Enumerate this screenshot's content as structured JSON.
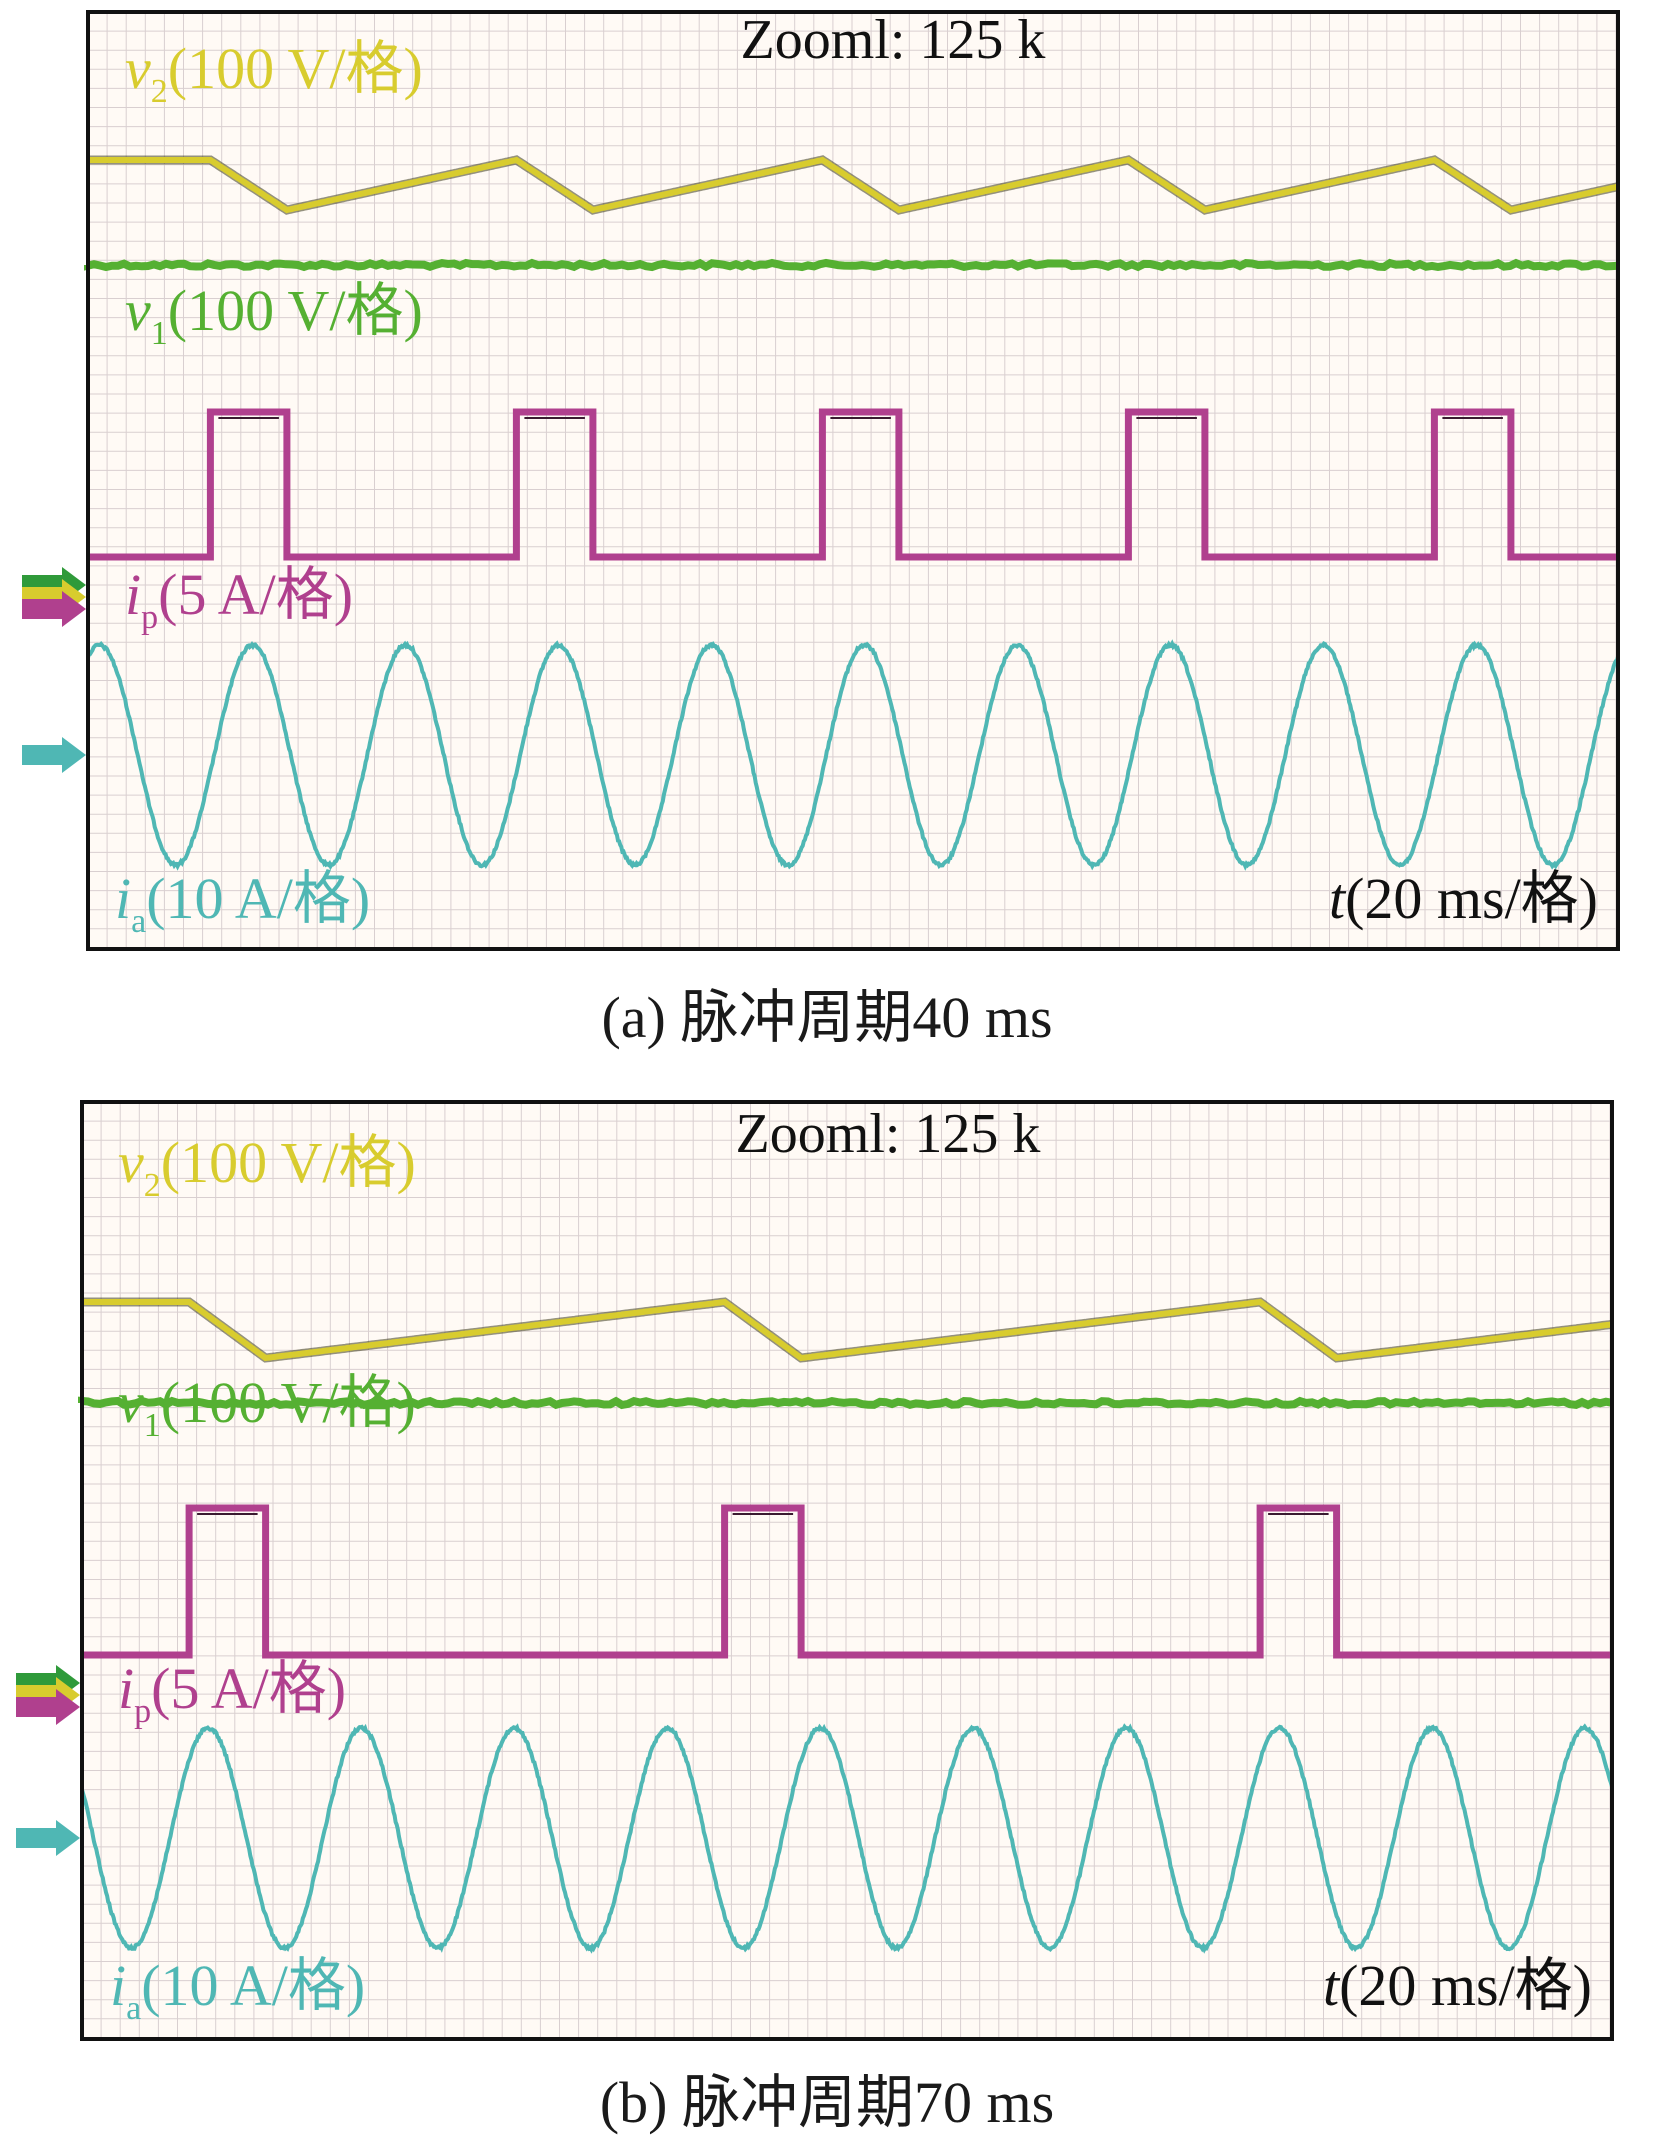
{
  "colors": {
    "grid_bg": "#fffaf5",
    "grid_line": "#d9cfd0",
    "frame": "#111111",
    "v2": "#d8cc2e",
    "v1": "#55b032",
    "ip": "#b0408e",
    "ia": "#4fb7b4",
    "marker_green": "#2f9a3a",
    "marker_yellow": "#d8cc2e",
    "marker_magenta": "#b0408e",
    "marker_teal": "#4fb7b4"
  },
  "panels": [
    {
      "zoom_label": "Zooml: 125 k",
      "caption": "(a) 脉冲周期40 ms",
      "labels": {
        "v2": {
          "sym": "v",
          "sub": "2",
          "scale": "(100 V/格)"
        },
        "v1": {
          "sym": "v",
          "sub": "1",
          "scale": "(100 V/格)"
        },
        "ip": {
          "sym": "i",
          "sub": "p",
          "scale": "(5 A/格)"
        },
        "ia": {
          "sym": "i",
          "sub": "a",
          "scale": "(10 A/格)"
        },
        "t": {
          "sym": "t",
          "scale": "(20 ms/格)"
        }
      },
      "chart_data": {
        "type": "line",
        "x_unit": "ms",
        "x_div": 20,
        "pulse_period_ms": 40,
        "pulse_width_ms": 10,
        "pulse_count": 5,
        "sine_cycles": 10,
        "series": [
          {
            "name": "v2",
            "shape": "sawtooth"
          },
          {
            "name": "v1",
            "shape": "flat"
          },
          {
            "name": "ip",
            "shape": "pulse"
          },
          {
            "name": "ia",
            "shape": "sine"
          }
        ]
      }
    },
    {
      "zoom_label": "Zooml: 125 k",
      "caption": "(b) 脉冲周期70 ms",
      "labels": {
        "v2": {
          "sym": "v",
          "sub": "2",
          "scale": "(100 V/格)"
        },
        "v1": {
          "sym": "v",
          "sub": "1",
          "scale": "(100 V/格)"
        },
        "ip": {
          "sym": "i",
          "sub": "p",
          "scale": "(5 A/格)"
        },
        "ia": {
          "sym": "i",
          "sub": "a",
          "scale": "(10 A/格)"
        },
        "t": {
          "sym": "t",
          "scale": "(20 ms/格)"
        }
      },
      "chart_data": {
        "type": "line",
        "x_unit": "ms",
        "x_div": 20,
        "pulse_period_ms": 70,
        "pulse_width_ms": 10,
        "pulse_count": 3,
        "sine_cycles": 10,
        "series": [
          {
            "name": "v2",
            "shape": "sawtooth"
          },
          {
            "name": "v1",
            "shape": "flat"
          },
          {
            "name": "ip",
            "shape": "pulse"
          },
          {
            "name": "ia",
            "shape": "sine"
          }
        ]
      }
    }
  ]
}
